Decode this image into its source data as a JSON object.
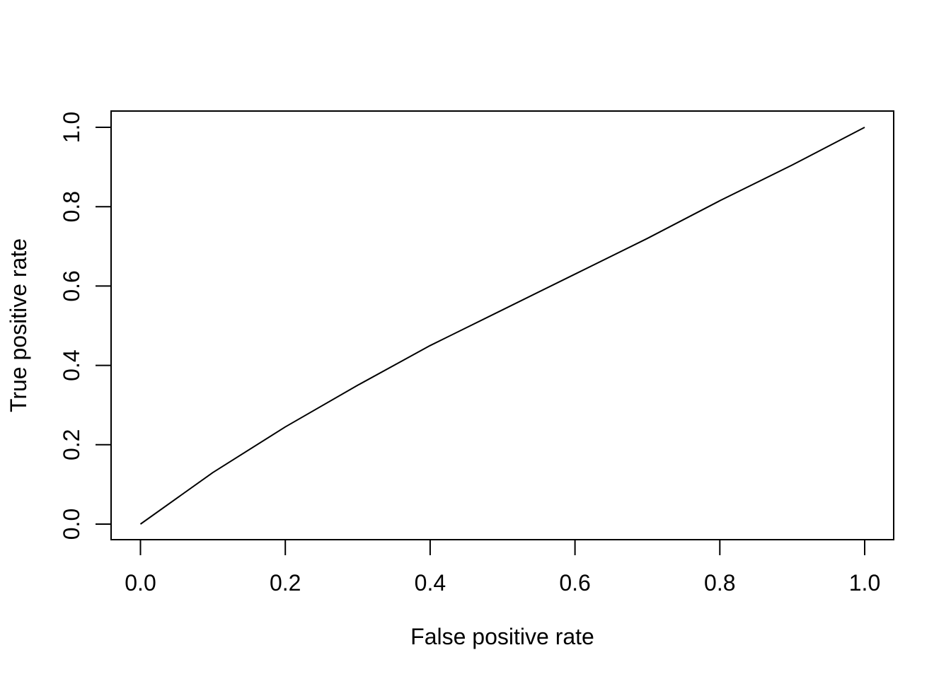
{
  "chart_data": {
    "type": "line",
    "title": "",
    "xlabel": "False positive rate",
    "ylabel": "True positive rate",
    "xlim": [
      0.0,
      1.0
    ],
    "ylim": [
      0.0,
      1.0
    ],
    "x_ticks": [
      "0.0",
      "0.2",
      "0.4",
      "0.6",
      "0.8",
      "1.0"
    ],
    "y_ticks": [
      "0.0",
      "0.2",
      "0.4",
      "0.6",
      "0.8",
      "1.0"
    ],
    "grid": false,
    "legend": "none",
    "line_color": "#000000",
    "series": [
      {
        "x": [
          0.0,
          0.1,
          0.2,
          0.3,
          0.4,
          0.5,
          0.6,
          0.7,
          0.8,
          0.9,
          1.0
        ],
        "y": [
          0.0,
          0.13,
          0.245,
          0.35,
          0.45,
          0.54,
          0.63,
          0.72,
          0.815,
          0.905,
          1.0
        ]
      }
    ]
  }
}
